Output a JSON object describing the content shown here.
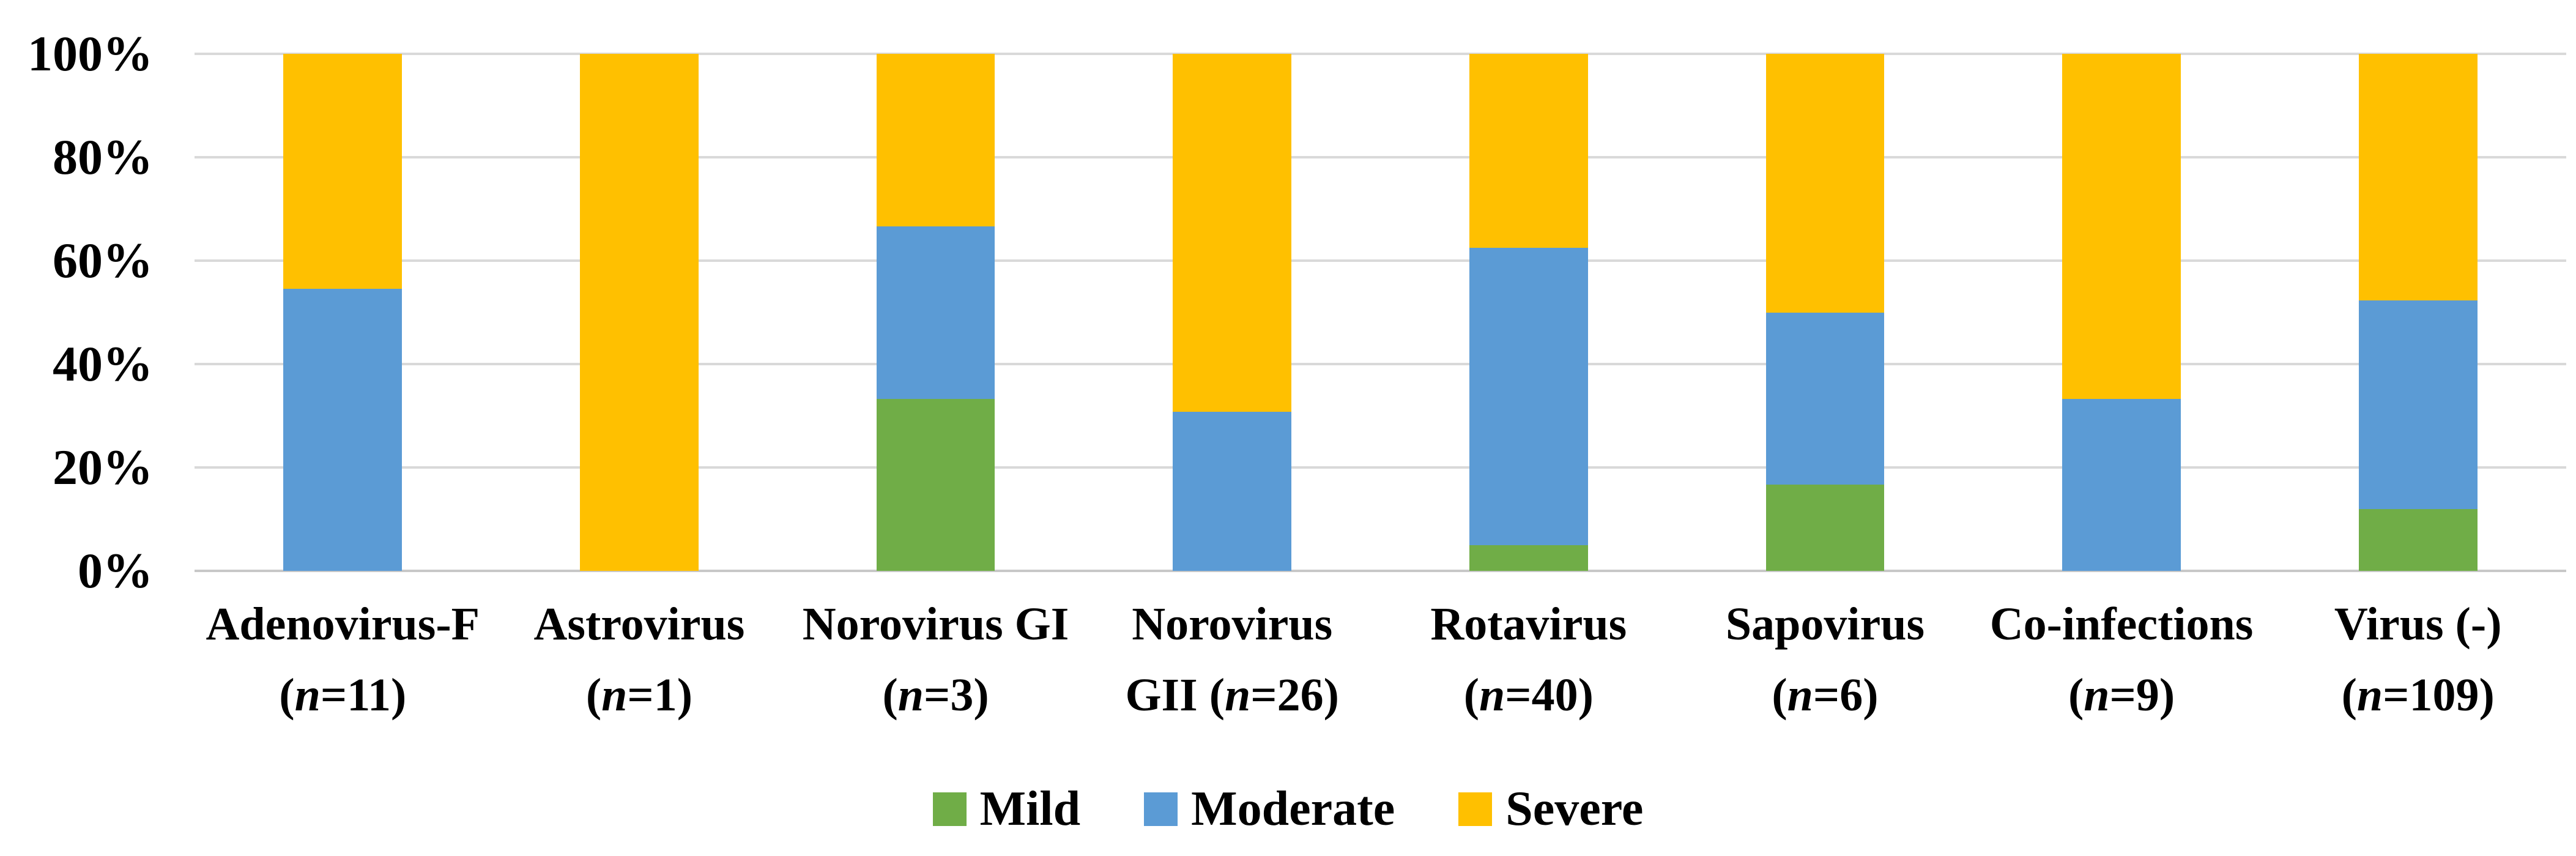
{
  "chart_data": {
    "type": "bar",
    "subtype": "stacked-100-percent-column",
    "title": "",
    "xlabel": "",
    "ylabel": "",
    "ylim": [
      0,
      100
    ],
    "grid": "horizontal",
    "legend_position": "bottom-center",
    "y_ticks": [
      "100%",
      "80%",
      "60%",
      "40%",
      "20%",
      "0%"
    ],
    "categories": [
      {
        "label": "Adenovirus-F (n=11)",
        "lines": [
          "Adenovirus-F",
          "(n=11)"
        ],
        "n": 11
      },
      {
        "label": "Astrovirus (n=1)",
        "lines": [
          "Astrovirus",
          "(n=1)"
        ],
        "n": 1
      },
      {
        "label": "Norovirus GI (n=3)",
        "lines": [
          "Norovirus GI",
          "(n=3)"
        ],
        "n": 3
      },
      {
        "label": "Norovirus GII (n=26)",
        "lines": [
          "Norovirus",
          "GII (n=26)"
        ],
        "n": 26
      },
      {
        "label": "Rotavirus (n=40)",
        "lines": [
          "Rotavirus",
          "(n=40)"
        ],
        "n": 40
      },
      {
        "label": "Sapovirus (n=6)",
        "lines": [
          "Sapovirus",
          "(n=6)"
        ],
        "n": 6
      },
      {
        "label": "Co-infections (n=9)",
        "lines": [
          "Co-infections",
          "(n=9)"
        ],
        "n": 9
      },
      {
        "label": "Virus (-) (n=109)",
        "lines": [
          "Virus (-)",
          "(n=109)"
        ],
        "n": 109
      }
    ],
    "series": [
      {
        "name": "Mild",
        "color": "#70AD47",
        "values": [
          0,
          0,
          33.3,
          0,
          5.0,
          16.7,
          0,
          11.9
        ]
      },
      {
        "name": "Moderate",
        "color": "#5B9BD5",
        "values": [
          54.5,
          0,
          33.3,
          30.8,
          57.5,
          33.3,
          33.3,
          40.4
        ]
      },
      {
        "name": "Severe",
        "color": "#FFC000",
        "values": [
          45.5,
          100,
          33.4,
          69.2,
          37.5,
          50.0,
          66.7,
          47.7
        ]
      }
    ],
    "units": "percent"
  },
  "legend": {
    "items": [
      {
        "label": "Mild",
        "color": "#70AD47"
      },
      {
        "label": "Moderate",
        "color": "#5B9BD5"
      },
      {
        "label": "Severe",
        "color": "#FFC000"
      }
    ]
  },
  "colors": {
    "mild": "#70AD47",
    "moderate": "#5B9BD5",
    "severe": "#FFC000",
    "gridline": "#D9D9D9",
    "axis_line": "#C8C8C8",
    "text": "#000000",
    "background": "#FFFFFF"
  }
}
